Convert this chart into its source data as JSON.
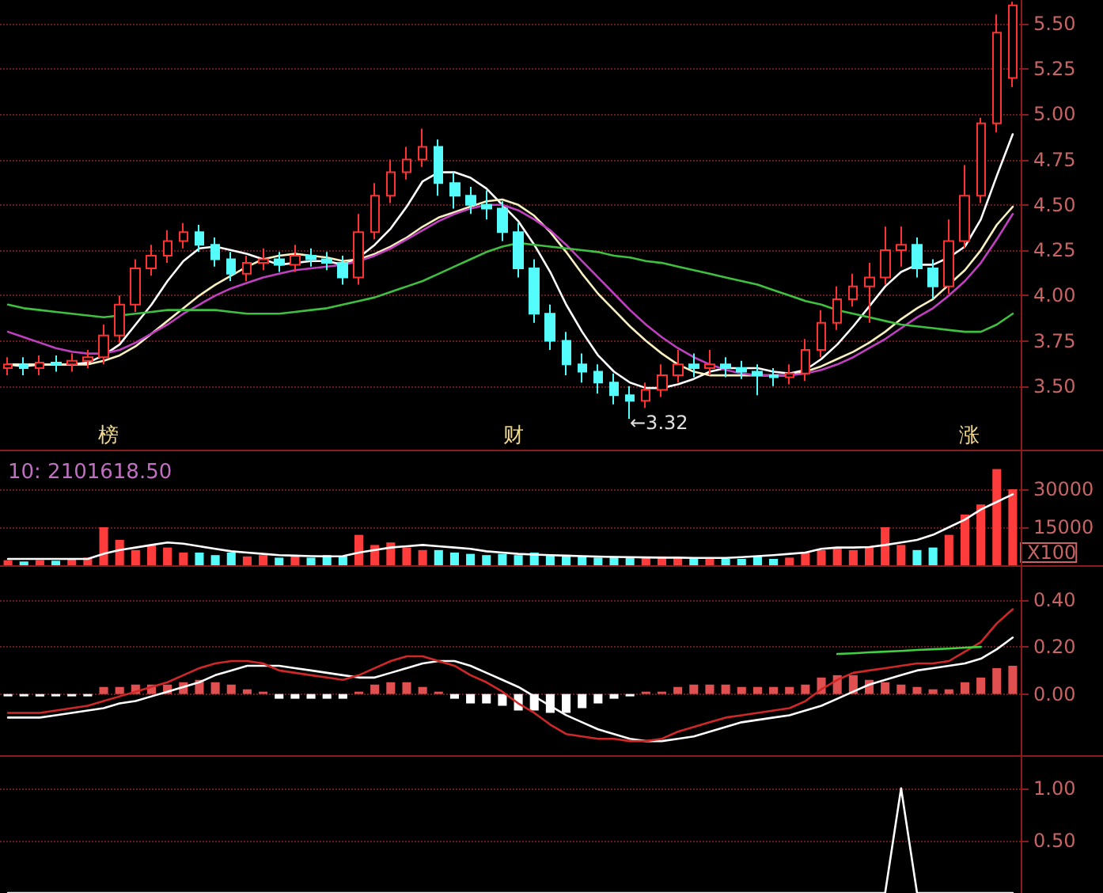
{
  "chart_data": [
    {
      "type": "candlestick",
      "categories": [
        null,
        null,
        null,
        null,
        null,
        null,
        null,
        null,
        null,
        null,
        null,
        null,
        null,
        null,
        null,
        null,
        null,
        null,
        null,
        null,
        null,
        null,
        null,
        null,
        null,
        null,
        null,
        null,
        null,
        null,
        null,
        null,
        null,
        null,
        null,
        null,
        null,
        null,
        null,
        null,
        null,
        null,
        null,
        null,
        null,
        null,
        null,
        null,
        null,
        null,
        null,
        null,
        null,
        null,
        null,
        null,
        null,
        null,
        null,
        null,
        null,
        null,
        null,
        null
      ],
      "ohlc": [
        [
          3.6,
          3.66,
          3.56,
          3.62
        ],
        [
          3.62,
          3.66,
          3.56,
          3.6
        ],
        [
          3.6,
          3.67,
          3.56,
          3.63
        ],
        [
          3.63,
          3.67,
          3.58,
          3.62
        ],
        [
          3.62,
          3.68,
          3.58,
          3.64
        ],
        [
          3.64,
          3.7,
          3.6,
          3.66
        ],
        [
          3.66,
          3.84,
          3.62,
          3.78
        ],
        [
          3.78,
          4.0,
          3.74,
          3.95
        ],
        [
          3.95,
          4.2,
          3.91,
          4.15
        ],
        [
          4.15,
          4.28,
          4.11,
          4.22
        ],
        [
          4.22,
          4.36,
          4.18,
          4.3
        ],
        [
          4.3,
          4.4,
          4.26,
          4.35
        ],
        [
          4.35,
          4.39,
          4.24,
          4.28
        ],
        [
          4.28,
          4.32,
          4.16,
          4.2
        ],
        [
          4.2,
          4.24,
          4.08,
          4.12
        ],
        [
          4.12,
          4.22,
          4.08,
          4.18
        ],
        [
          4.18,
          4.26,
          4.14,
          4.2
        ],
        [
          4.2,
          4.24,
          4.13,
          4.17
        ],
        [
          4.17,
          4.28,
          4.13,
          4.22
        ],
        [
          4.22,
          4.26,
          4.16,
          4.2
        ],
        [
          4.2,
          4.24,
          4.14,
          4.18
        ],
        [
          4.18,
          4.22,
          4.06,
          4.1
        ],
        [
          4.1,
          4.45,
          4.06,
          4.35
        ],
        [
          4.35,
          4.62,
          4.31,
          4.55
        ],
        [
          4.55,
          4.75,
          4.51,
          4.68
        ],
        [
          4.68,
          4.82,
          4.64,
          4.75
        ],
        [
          4.75,
          4.92,
          4.71,
          4.82
        ],
        [
          4.82,
          4.86,
          4.55,
          4.62
        ],
        [
          4.62,
          4.68,
          4.48,
          4.55
        ],
        [
          4.55,
          4.6,
          4.45,
          4.5
        ],
        [
          4.5,
          4.58,
          4.42,
          4.48
        ],
        [
          4.48,
          4.52,
          4.3,
          4.35
        ],
        [
          4.35,
          4.4,
          4.1,
          4.15
        ],
        [
          4.15,
          4.2,
          3.85,
          3.9
        ],
        [
          3.9,
          3.95,
          3.7,
          3.75
        ],
        [
          3.75,
          3.8,
          3.56,
          3.62
        ],
        [
          3.62,
          3.68,
          3.52,
          3.58
        ],
        [
          3.58,
          3.62,
          3.46,
          3.52
        ],
        [
          3.52,
          3.57,
          3.4,
          3.45
        ],
        [
          3.45,
          3.5,
          3.32,
          3.42
        ],
        [
          3.42,
          3.52,
          3.38,
          3.48
        ],
        [
          3.48,
          3.62,
          3.44,
          3.56
        ],
        [
          3.56,
          3.7,
          3.52,
          3.62
        ],
        [
          3.62,
          3.68,
          3.55,
          3.6
        ],
        [
          3.6,
          3.7,
          3.56,
          3.62
        ],
        [
          3.62,
          3.66,
          3.55,
          3.6
        ],
        [
          3.6,
          3.64,
          3.54,
          3.58
        ],
        [
          3.58,
          3.62,
          3.45,
          3.56
        ],
        [
          3.56,
          3.6,
          3.5,
          3.55
        ],
        [
          3.55,
          3.62,
          3.51,
          3.57
        ],
        [
          3.57,
          3.76,
          3.53,
          3.7
        ],
        [
          3.7,
          3.92,
          3.66,
          3.85
        ],
        [
          3.85,
          4.05,
          3.81,
          3.98
        ],
        [
          3.98,
          4.12,
          3.94,
          4.05
        ],
        [
          4.05,
          4.18,
          3.85,
          4.1
        ],
        [
          4.1,
          4.38,
          4.06,
          4.25
        ],
        [
          4.25,
          4.38,
          4.16,
          4.28
        ],
        [
          4.28,
          4.32,
          4.1,
          4.15
        ],
        [
          4.15,
          4.2,
          3.98,
          4.05
        ],
        [
          4.05,
          4.42,
          4.01,
          4.3
        ],
        [
          4.3,
          4.72,
          4.26,
          4.55
        ],
        [
          4.55,
          4.98,
          4.51,
          4.95
        ],
        [
          4.95,
          5.55,
          4.9,
          5.45
        ],
        [
          5.2,
          5.62,
          5.15,
          5.6
        ]
      ],
      "series": [
        {
          "type": "line",
          "color": "#ffffff",
          "values": [
            3.62,
            3.61,
            3.62,
            3.62,
            3.62,
            3.63,
            3.67,
            3.73,
            3.84,
            3.95,
            4.08,
            4.19,
            4.26,
            4.27,
            4.25,
            4.23,
            4.2,
            4.17,
            4.18,
            4.19,
            4.19,
            4.17,
            4.21,
            4.28,
            4.37,
            4.49,
            4.63,
            4.68,
            4.68,
            4.65,
            4.59,
            4.5,
            4.41,
            4.28,
            4.13,
            3.95,
            3.8,
            3.67,
            3.58,
            3.52,
            3.49,
            3.49,
            3.51,
            3.54,
            3.58,
            3.6,
            3.6,
            3.6,
            3.58,
            3.57,
            3.59,
            3.65,
            3.73,
            3.83,
            3.94,
            4.05,
            4.13,
            4.17,
            4.17,
            4.21,
            4.27,
            4.42,
            4.66,
            4.89
          ]
        },
        {
          "type": "line",
          "color": "#f8f0c0",
          "values": [
            3.62,
            3.62,
            3.62,
            3.62,
            3.62,
            3.62,
            3.64,
            3.67,
            3.72,
            3.79,
            3.86,
            3.93,
            4.0,
            4.06,
            4.11,
            4.16,
            4.2,
            4.22,
            4.23,
            4.22,
            4.21,
            4.19,
            4.2,
            4.23,
            4.27,
            4.32,
            4.38,
            4.43,
            4.46,
            4.49,
            4.52,
            4.53,
            4.5,
            4.44,
            4.35,
            4.24,
            4.12,
            4.01,
            3.92,
            3.83,
            3.75,
            3.68,
            3.62,
            3.58,
            3.56,
            3.56,
            3.56,
            3.56,
            3.56,
            3.56,
            3.58,
            3.61,
            3.65,
            3.69,
            3.74,
            3.8,
            3.87,
            3.93,
            3.98,
            4.06,
            4.14,
            4.25,
            4.39,
            4.49
          ]
        },
        {
          "type": "line",
          "color": "#c040c0",
          "values": [
            3.8,
            3.77,
            3.74,
            3.71,
            3.69,
            3.68,
            3.68,
            3.7,
            3.74,
            3.79,
            3.84,
            3.9,
            3.95,
            4.0,
            4.04,
            4.07,
            4.1,
            4.12,
            4.14,
            4.15,
            4.16,
            4.17,
            4.19,
            4.22,
            4.26,
            4.31,
            4.36,
            4.41,
            4.45,
            4.48,
            4.5,
            4.5,
            4.47,
            4.42,
            4.36,
            4.28,
            4.19,
            4.1,
            4.01,
            3.92,
            3.84,
            3.77,
            3.71,
            3.66,
            3.62,
            3.59,
            3.57,
            3.56,
            3.56,
            3.56,
            3.57,
            3.59,
            3.62,
            3.66,
            3.71,
            3.76,
            3.82,
            3.88,
            3.93,
            4.0,
            4.08,
            4.18,
            4.31,
            4.45
          ]
        },
        {
          "type": "line",
          "color": "#40c040",
          "values": [
            3.95,
            3.93,
            3.92,
            3.91,
            3.9,
            3.89,
            3.88,
            3.89,
            3.9,
            3.91,
            3.92,
            3.92,
            3.92,
            3.92,
            3.91,
            3.9,
            3.9,
            3.9,
            3.91,
            3.92,
            3.93,
            3.95,
            3.97,
            3.99,
            4.02,
            4.05,
            4.08,
            4.12,
            4.16,
            4.2,
            4.24,
            4.27,
            4.29,
            4.28,
            4.27,
            4.26,
            4.25,
            4.24,
            4.22,
            4.21,
            4.19,
            4.18,
            4.16,
            4.14,
            4.12,
            4.1,
            4.08,
            4.06,
            4.03,
            4.0,
            3.97,
            3.95,
            3.92,
            3.9,
            3.88,
            3.86,
            3.84,
            3.83,
            3.82,
            3.81,
            3.8,
            3.8,
            3.84,
            3.9
          ]
        }
      ],
      "ylim": [
        3.15,
        5.63
      ],
      "yticks": [
        {
          "value": 3.5,
          "label": "3.50"
        },
        {
          "value": 3.75,
          "label": "3.75"
        },
        {
          "value": 4,
          "label": "4.00"
        },
        {
          "value": 4.25,
          "label": "4.25"
        },
        {
          "value": 4.5,
          "label": "4.50"
        },
        {
          "value": 4.75,
          "label": "4.75"
        },
        {
          "value": 5,
          "label": "5.00"
        },
        {
          "value": 5.25,
          "label": "5.25"
        },
        {
          "value": 5.5,
          "label": "5.50"
        }
      ],
      "grid": "y",
      "marker": "none",
      "line_style": "solid",
      "tick_labels": "y",
      "annotations": [
        "榜",
        "财",
        "涨",
        "←3.32"
      ]
    },
    {
      "type": "bar",
      "title": "10: 2101618.50",
      "ylabel": "X100",
      "categories": [
        null,
        null,
        null,
        null,
        null,
        null,
        null,
        null,
        null,
        null,
        null,
        null,
        null,
        null,
        null,
        null,
        null,
        null,
        null,
        null,
        null,
        null,
        null,
        null,
        null,
        null,
        null,
        null,
        null,
        null,
        null,
        null,
        null,
        null,
        null,
        null,
        null,
        null,
        null,
        null,
        null,
        null,
        null,
        null,
        null,
        null,
        null,
        null,
        null,
        null,
        null,
        null,
        null,
        null,
        null,
        null,
        null,
        null,
        null,
        null,
        null,
        null,
        null,
        null
      ],
      "values": [
        2000,
        1500,
        2000,
        1800,
        2500,
        3000,
        15000,
        10000,
        6000,
        8000,
        7000,
        5000,
        5000,
        4000,
        5000,
        3500,
        4000,
        3000,
        3500,
        3000,
        4000,
        3500,
        12000,
        8000,
        9000,
        7000,
        6000,
        6000,
        5000,
        4500,
        4000,
        4500,
        4000,
        5000,
        4000,
        3500,
        3500,
        3000,
        3500,
        3000,
        3000,
        3500,
        3000,
        2500,
        3000,
        2500,
        2500,
        3500,
        2500,
        3000,
        5000,
        6000,
        7000,
        6000,
        7000,
        15000,
        8000,
        6000,
        7000,
        12000,
        20000,
        24000,
        38000,
        30000
      ],
      "colors": [
        "#ff3c3c",
        "#54fcfc",
        "#ff3c3c",
        "#54fcfc",
        "#ff3c3c",
        "#ff3c3c",
        "#ff3c3c",
        "#ff3c3c",
        "#ff3c3c",
        "#ff3c3c",
        "#ff3c3c",
        "#ff3c3c",
        "#54fcfc",
        "#54fcfc",
        "#54fcfc",
        "#ff3c3c",
        "#ff3c3c",
        "#54fcfc",
        "#ff3c3c",
        "#54fcfc",
        "#54fcfc",
        "#54fcfc",
        "#ff3c3c",
        "#ff3c3c",
        "#ff3c3c",
        "#ff3c3c",
        "#ff3c3c",
        "#54fcfc",
        "#54fcfc",
        "#54fcfc",
        "#54fcfc",
        "#54fcfc",
        "#54fcfc",
        "#54fcfc",
        "#54fcfc",
        "#54fcfc",
        "#54fcfc",
        "#54fcfc",
        "#54fcfc",
        "#54fcfc",
        "#ff3c3c",
        "#ff3c3c",
        "#ff3c3c",
        "#54fcfc",
        "#ff3c3c",
        "#54fcfc",
        "#54fcfc",
        "#54fcfc",
        "#54fcfc",
        "#ff3c3c",
        "#ff3c3c",
        "#ff3c3c",
        "#ff3c3c",
        "#ff3c3c",
        "#ff3c3c",
        "#ff3c3c",
        "#ff3c3c",
        "#54fcfc",
        "#54fcfc",
        "#ff3c3c",
        "#ff3c3c",
        "#ff3c3c",
        "#ff3c3c",
        "#ff3c3c"
      ],
      "series": [
        {
          "type": "line",
          "color": "#ffffff",
          "values": [
            2500,
            2500,
            2500,
            2500,
            2500,
            2500,
            4500,
            6000,
            7000,
            8000,
            9000,
            8500,
            7500,
            6500,
            5500,
            5000,
            4500,
            4000,
            3800,
            3600,
            3500,
            3600,
            5000,
            6000,
            7000,
            7500,
            8000,
            7500,
            7000,
            6500,
            5500,
            5000,
            4500,
            4200,
            4000,
            3800,
            3600,
            3400,
            3300,
            3200,
            3100,
            3000,
            3000,
            2900,
            2900,
            2900,
            3200,
            3600,
            4000,
            4500,
            5000,
            6500,
            7000,
            7000,
            7200,
            8000,
            9000,
            10000,
            12000,
            15000,
            18000,
            22000,
            25000,
            28000
          ]
        }
      ],
      "ylim": [
        0,
        45000
      ],
      "yticks": [
        15000,
        30000
      ],
      "grid": "y",
      "marker": "none",
      "line_style": "solid",
      "tick_labels": "y"
    },
    {
      "type": "bar",
      "categories": [
        null,
        null,
        null,
        null,
        null,
        null,
        null,
        null,
        null,
        null,
        null,
        null,
        null,
        null,
        null,
        null,
        null,
        null,
        null,
        null,
        null,
        null,
        null,
        null,
        null,
        null,
        null,
        null,
        null,
        null,
        null,
        null,
        null,
        null,
        null,
        null,
        null,
        null,
        null,
        null,
        null,
        null,
        null,
        null,
        null,
        null,
        null,
        null,
        null,
        null,
        null,
        null,
        null,
        null,
        null,
        null,
        null,
        null,
        null,
        null,
        null,
        null,
        null,
        null
      ],
      "values": [
        -0.01,
        -0.01,
        -0.01,
        -0.01,
        -0.01,
        -0.01,
        0.03,
        0.03,
        0.04,
        0.04,
        0.04,
        0.05,
        0.06,
        0.05,
        0.04,
        0.02,
        0.01,
        -0.02,
        -0.02,
        -0.02,
        -0.02,
        -0.02,
        0.01,
        0.04,
        0.05,
        0.05,
        0.03,
        0.01,
        -0.02,
        -0.04,
        -0.04,
        -0.05,
        -0.07,
        -0.07,
        -0.08,
        -0.08,
        -0.06,
        -0.04,
        -0.02,
        -0.01,
        0.01,
        0.01,
        0.03,
        0.04,
        0.04,
        0.04,
        0.03,
        0.03,
        0.03,
        0.03,
        0.04,
        0.07,
        0.08,
        0.08,
        0.06,
        0.05,
        0.04,
        0.03,
        0.02,
        0.02,
        0.05,
        0.07,
        0.11,
        0.12
      ],
      "colors": [
        "#ffffff",
        "#ffffff",
        "#ffffff",
        "#ffffff",
        "#ffffff",
        "#ffffff",
        "#e05050",
        "#e05050",
        "#e05050",
        "#e05050",
        "#e05050",
        "#e05050",
        "#e05050",
        "#e05050",
        "#e05050",
        "#e05050",
        "#e05050",
        "#ffffff",
        "#ffffff",
        "#ffffff",
        "#ffffff",
        "#ffffff",
        "#e05050",
        "#e05050",
        "#e05050",
        "#e05050",
        "#e05050",
        "#e05050",
        "#ffffff",
        "#ffffff",
        "#ffffff",
        "#ffffff",
        "#ffffff",
        "#ffffff",
        "#ffffff",
        "#ffffff",
        "#ffffff",
        "#ffffff",
        "#ffffff",
        "#ffffff",
        "#e05050",
        "#e05050",
        "#e05050",
        "#e05050",
        "#e05050",
        "#e05050",
        "#e05050",
        "#e05050",
        "#e05050",
        "#e05050",
        "#e05050",
        "#e05050",
        "#e05050",
        "#e05050",
        "#e05050",
        "#e05050",
        "#e05050",
        "#e05050",
        "#e05050",
        "#e05050",
        "#e05050",
        "#e05050",
        "#e05050",
        "#e05050"
      ],
      "series": [
        {
          "type": "line",
          "color": "#ffffff",
          "values": [
            -0.1,
            -0.1,
            -0.1,
            -0.09,
            -0.08,
            -0.07,
            -0.06,
            -0.04,
            -0.03,
            -0.01,
            0.01,
            0.03,
            0.05,
            0.08,
            0.1,
            0.12,
            0.12,
            0.12,
            0.11,
            0.1,
            0.09,
            0.08,
            0.07,
            0.07,
            0.09,
            0.11,
            0.13,
            0.14,
            0.14,
            0.12,
            0.09,
            0.06,
            0.03,
            -0.01,
            -0.05,
            -0.09,
            -0.12,
            -0.15,
            -0.17,
            -0.19,
            -0.2,
            -0.2,
            -0.19,
            -0.18,
            -0.16,
            -0.14,
            -0.12,
            -0.11,
            -0.1,
            -0.09,
            -0.07,
            -0.05,
            -0.02,
            0.01,
            0.04,
            0.06,
            0.08,
            0.1,
            0.11,
            0.12,
            0.13,
            0.15,
            0.19,
            0.24
          ]
        },
        {
          "type": "line",
          "color": "#d02828",
          "values": [
            -0.08,
            -0.08,
            -0.08,
            -0.07,
            -0.06,
            -0.05,
            -0.03,
            -0.01,
            0.01,
            0.03,
            0.05,
            0.08,
            0.11,
            0.13,
            0.14,
            0.14,
            0.13,
            0.1,
            0.09,
            0.08,
            0.07,
            0.06,
            0.08,
            0.11,
            0.14,
            0.16,
            0.16,
            0.14,
            0.12,
            0.08,
            0.05,
            0.01,
            -0.04,
            -0.08,
            -0.13,
            -0.17,
            -0.18,
            -0.19,
            -0.19,
            -0.2,
            -0.2,
            -0.19,
            -0.16,
            -0.14,
            -0.12,
            -0.1,
            -0.09,
            -0.08,
            -0.07,
            -0.06,
            -0.03,
            0.02,
            0.06,
            0.09,
            0.1,
            0.11,
            0.12,
            0.13,
            0.13,
            0.14,
            0.18,
            0.22,
            0.3,
            0.36
          ]
        },
        {
          "type": "line",
          "color": "#40d040",
          "values": [
            null,
            null,
            null,
            null,
            null,
            null,
            null,
            null,
            null,
            null,
            null,
            null,
            null,
            null,
            null,
            null,
            null,
            null,
            null,
            null,
            null,
            null,
            null,
            null,
            null,
            null,
            null,
            null,
            null,
            null,
            null,
            null,
            null,
            null,
            null,
            null,
            null,
            null,
            null,
            null,
            null,
            null,
            null,
            null,
            null,
            null,
            null,
            null,
            null,
            null,
            null,
            null,
            0.17,
            0.173,
            0.177,
            0.18,
            0.183,
            0.187,
            0.19,
            0.193,
            0.197,
            0.2,
            null,
            null
          ]
        }
      ],
      "ylim": [
        -0.26,
        0.54
      ],
      "yticks": [
        {
          "value": 0,
          "label": "0.00"
        },
        {
          "value": 0.2,
          "label": "0.20"
        },
        {
          "value": 0.4,
          "label": "0.40"
        }
      ],
      "grid": "y",
      "marker": "none",
      "line_style": "solid",
      "tick_labels": "y"
    },
    {
      "type": "line",
      "categories": [
        null,
        null,
        null,
        null,
        null,
        null,
        null,
        null,
        null,
        null,
        null,
        null,
        null,
        null,
        null,
        null,
        null,
        null,
        null,
        null,
        null,
        null,
        null,
        null,
        null,
        null,
        null,
        null,
        null,
        null,
        null,
        null,
        null,
        null,
        null,
        null,
        null,
        null,
        null,
        null,
        null,
        null,
        null,
        null,
        null,
        null,
        null,
        null,
        null,
        null,
        null,
        null,
        null,
        null,
        null,
        null,
        null,
        null,
        null,
        null,
        null,
        null,
        null,
        null
      ],
      "series": [
        {
          "color": "#ffffff",
          "values": [
            0,
            0,
            0,
            0,
            0,
            0,
            0,
            0,
            0,
            0,
            0,
            0,
            0,
            0,
            0,
            0,
            0,
            0,
            0,
            0,
            0,
            0,
            0,
            0,
            0,
            0,
            0,
            0,
            0,
            0,
            0,
            0,
            0,
            0,
            0,
            0,
            0,
            0,
            0,
            0,
            0,
            0,
            0,
            0,
            0,
            0,
            0,
            0,
            0,
            0,
            0,
            0,
            0,
            0,
            0,
            0,
            1,
            0,
            0,
            0,
            0,
            0,
            0,
            0
          ]
        }
      ],
      "ylim": [
        0,
        1.3
      ],
      "yticks": [
        {
          "value": 0.5,
          "label": "0.50"
        },
        {
          "value": 1,
          "label": "1.00"
        }
      ],
      "grid": "y",
      "marker": "none",
      "line_style": "solid",
      "tick_labels": "y"
    }
  ]
}
